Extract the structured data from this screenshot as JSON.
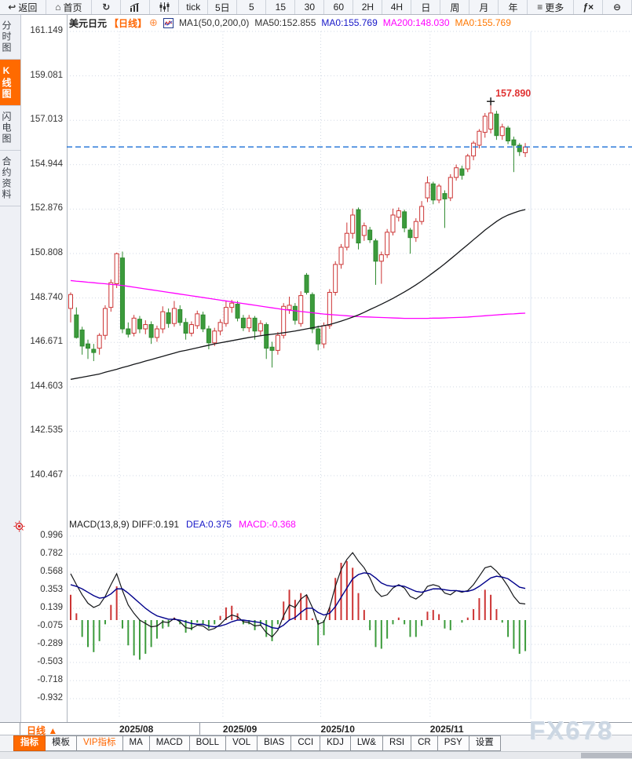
{
  "toolbar": {
    "items": [
      {
        "name": "back",
        "label": "返回",
        "icon": "back-arrow",
        "wide": true
      },
      {
        "name": "home",
        "label": "首页",
        "icon": "home",
        "wide": true
      },
      {
        "name": "refresh",
        "label": "",
        "icon": "refresh"
      },
      {
        "name": "chart-type-bar",
        "label": "",
        "icon": "bar-chart"
      },
      {
        "name": "chart-type-candle",
        "label": "",
        "icon": "candle-sliders"
      },
      {
        "name": "timeframe-tick",
        "label": "tick"
      },
      {
        "name": "timeframe-5d",
        "label": "5日"
      },
      {
        "name": "timeframe-5",
        "label": "5"
      },
      {
        "name": "timeframe-15",
        "label": "15"
      },
      {
        "name": "timeframe-30",
        "label": "30"
      },
      {
        "name": "timeframe-60",
        "label": "60"
      },
      {
        "name": "timeframe-2h",
        "label": "2H"
      },
      {
        "name": "timeframe-4h",
        "label": "4H"
      },
      {
        "name": "timeframe-day",
        "label": "日"
      },
      {
        "name": "timeframe-week",
        "label": "周"
      },
      {
        "name": "timeframe-month",
        "label": "月"
      },
      {
        "name": "timeframe-year",
        "label": "年"
      },
      {
        "name": "more",
        "label": "更多",
        "icon": "menu",
        "wide": true
      },
      {
        "name": "fx",
        "label": "",
        "icon": "fx"
      },
      {
        "name": "zoom-out",
        "label": "",
        "icon": "zoom-out"
      }
    ]
  },
  "sidebar": {
    "tabs": [
      {
        "name": "time-share-chart",
        "label": "分时图",
        "active": false
      },
      {
        "name": "kline-chart",
        "label": "K线图",
        "active": true
      },
      {
        "name": "lightning-chart",
        "label": "闪电图",
        "active": false
      },
      {
        "name": "contract-info",
        "label": "合约资料",
        "active": false
      }
    ]
  },
  "chart_header": {
    "symbol": "美元日元",
    "period": "【日线】",
    "plus_icon": "⊕",
    "ma_settings": "MA1(50,0,200,0)",
    "ma50": "MA50:152.855",
    "ma0_blue": "MA0:155.769",
    "ma200": "MA200:148.030",
    "ma0_orange": "MA0:155.769"
  },
  "price_axis": [
    "161.149",
    "159.081",
    "157.013",
    "154.944",
    "152.876",
    "150.808",
    "148.740",
    "146.671",
    "144.603",
    "142.535",
    "140.467"
  ],
  "high_label": "157.890",
  "macd_header": {
    "title_diff": "MACD(13,8,9) DIFF:0.191",
    "dea": "DEA:0.375",
    "macd": "MACD:-0.368"
  },
  "macd_axis": [
    "0.996",
    "0.782",
    "0.568",
    "0.353",
    "0.139",
    "-0.075",
    "-0.289",
    "-0.503",
    "-0.718",
    "-0.932"
  ],
  "x_axis": {
    "period_label": "日线 ▲",
    "dates": [
      "2025/08",
      "2025/09",
      "2025/10",
      "2025/11"
    ]
  },
  "bottom_tabs": [
    {
      "name": "indicator",
      "label": "指标",
      "style": "active"
    },
    {
      "name": "template",
      "label": "模板",
      "style": ""
    },
    {
      "name": "vip-indicator",
      "label": "VIP指标",
      "style": "vip"
    },
    {
      "name": "ma",
      "label": "MA",
      "style": ""
    },
    {
      "name": "macd",
      "label": "MACD",
      "style": ""
    },
    {
      "name": "boll",
      "label": "BOLL",
      "style": ""
    },
    {
      "name": "vol",
      "label": "VOL",
      "style": ""
    },
    {
      "name": "bias",
      "label": "BIAS",
      "style": ""
    },
    {
      "name": "cci",
      "label": "CCI",
      "style": ""
    },
    {
      "name": "kdj",
      "label": "KDJ",
      "style": ""
    },
    {
      "name": "lw",
      "label": "LW&",
      "style": ""
    },
    {
      "name": "rsi",
      "label": "RSI",
      "style": ""
    },
    {
      "name": "cr",
      "label": "CR",
      "style": ""
    },
    {
      "name": "psy",
      "label": "PSY",
      "style": ""
    },
    {
      "name": "settings",
      "label": "设置",
      "style": ""
    }
  ],
  "watermark": "FX678",
  "colors": {
    "up": "#cc3434",
    "down": "#3c9b3c",
    "down_stroke": "#2f8a2f",
    "ma50": "#15171a",
    "ma200": "#ff00ff",
    "diff_line": "#15171a",
    "dea_line": "#00008b",
    "price_line": "#1a6fd6",
    "grid": "#d2d9e4",
    "accent_orange": "#ff6600",
    "red_label": "#e03333"
  },
  "chart_data": {
    "type": "candlestick",
    "title": "美元日元 日线 (USD/JPY Daily) with MA50/MA200 and MACD(13,8,9)",
    "ylabel": "Price",
    "y_ticks": [
      161.149,
      159.081,
      157.013,
      154.944,
      152.876,
      150.808,
      148.74,
      146.671,
      144.603,
      142.535,
      140.467
    ],
    "ylim": [
      140.467,
      161.149
    ],
    "last_price": 155.769,
    "marked_high": {
      "index": 73,
      "price": 157.89,
      "label": "157.890"
    },
    "months": [
      {
        "label": "2025/08",
        "start_index": 9
      },
      {
        "label": "2025/09",
        "start_index": 27
      },
      {
        "label": "2025/10",
        "start_index": 44
      },
      {
        "label": "2025/11",
        "start_index": 63
      }
    ],
    "candles": [
      [
        148.25,
        149.0,
        147.6,
        148.9
      ],
      [
        147.95,
        148.3,
        146.85,
        146.9
      ],
      [
        147.25,
        147.4,
        146.1,
        146.5
      ],
      [
        146.6,
        146.8,
        145.9,
        146.4
      ],
      [
        146.35,
        146.6,
        145.8,
        146.2
      ],
      [
        146.4,
        147.1,
        146.1,
        147.0
      ],
      [
        147.0,
        148.4,
        146.8,
        148.25
      ],
      [
        148.3,
        149.6,
        148.1,
        149.45
      ],
      [
        149.4,
        150.85,
        149.2,
        150.8
      ],
      [
        150.6,
        150.9,
        147.1,
        147.3
      ],
      [
        147.3,
        147.6,
        146.9,
        147.05
      ],
      [
        147.1,
        147.95,
        146.95,
        147.8
      ],
      [
        147.75,
        147.9,
        147.1,
        147.3
      ],
      [
        147.3,
        147.7,
        147.05,
        147.5
      ],
      [
        147.5,
        147.65,
        146.6,
        146.9
      ],
      [
        146.9,
        147.45,
        146.7,
        147.3
      ],
      [
        147.3,
        148.35,
        147.1,
        148.1
      ],
      [
        148.05,
        148.25,
        147.35,
        147.55
      ],
      [
        147.55,
        148.6,
        147.4,
        148.25
      ],
      [
        148.2,
        148.4,
        147.45,
        147.6
      ],
      [
        147.6,
        147.8,
        146.8,
        147.1
      ],
      [
        147.1,
        147.65,
        146.95,
        147.5
      ],
      [
        147.45,
        148.15,
        147.3,
        148.0
      ],
      [
        147.95,
        148.1,
        147.15,
        147.3
      ],
      [
        147.3,
        147.45,
        146.35,
        146.65
      ],
      [
        146.65,
        147.35,
        146.5,
        147.2
      ],
      [
        147.2,
        147.75,
        147.0,
        147.6
      ],
      [
        147.55,
        148.6,
        147.4,
        148.3
      ],
      [
        148.3,
        148.65,
        148.05,
        148.5
      ],
      [
        148.45,
        148.6,
        147.65,
        147.8
      ],
      [
        147.8,
        147.95,
        147.2,
        147.35
      ],
      [
        147.35,
        147.95,
        147.15,
        147.8
      ],
      [
        147.8,
        147.9,
        146.8,
        147.2
      ],
      [
        147.2,
        147.7,
        147.0,
        147.55
      ],
      [
        147.5,
        147.6,
        145.9,
        146.4
      ],
      [
        146.45,
        146.7,
        145.5,
        146.3
      ],
      [
        146.3,
        147.15,
        146.1,
        147.0
      ],
      [
        147.0,
        148.5,
        146.85,
        148.35
      ],
      [
        148.2,
        148.8,
        148.0,
        148.4
      ],
      [
        148.35,
        148.5,
        147.5,
        147.7
      ],
      [
        147.55,
        149.05,
        147.4,
        148.85
      ],
      [
        149.8,
        149.9,
        148.9,
        149.0
      ],
      [
        148.9,
        149.0,
        147.1,
        147.3
      ],
      [
        147.3,
        147.45,
        146.3,
        146.6
      ],
      [
        146.6,
        147.6,
        146.4,
        147.45
      ],
      [
        147.45,
        149.15,
        147.3,
        149.0
      ],
      [
        149.0,
        150.45,
        148.85,
        150.3
      ],
      [
        150.3,
        151.25,
        150.1,
        151.1
      ],
      [
        151.1,
        152.25,
        150.95,
        151.75
      ],
      [
        151.75,
        152.9,
        151.5,
        152.6
      ],
      [
        152.85,
        152.95,
        151.0,
        151.3
      ],
      [
        151.65,
        152.25,
        151.4,
        152.1
      ],
      [
        151.9,
        152.05,
        151.3,
        151.45
      ],
      [
        151.4,
        151.5,
        149.35,
        150.45
      ],
      [
        150.45,
        150.9,
        149.4,
        150.75
      ],
      [
        150.75,
        151.95,
        150.6,
        151.8
      ],
      [
        151.8,
        152.9,
        151.65,
        152.6
      ],
      [
        152.5,
        152.95,
        152.3,
        152.8
      ],
      [
        152.75,
        152.85,
        151.8,
        152.0
      ],
      [
        151.9,
        152.0,
        150.8,
        151.55
      ],
      [
        151.55,
        152.45,
        151.35,
        152.3
      ],
      [
        152.3,
        153.25,
        152.15,
        153.0
      ],
      [
        153.4,
        154.4,
        153.2,
        154.1
      ],
      [
        154.05,
        154.15,
        153.1,
        153.3
      ],
      [
        153.3,
        154.05,
        153.15,
        153.95
      ],
      [
        153.6,
        153.75,
        152.0,
        153.35
      ],
      [
        153.4,
        154.5,
        153.25,
        154.35
      ],
      [
        154.35,
        154.95,
        154.2,
        154.8
      ],
      [
        154.75,
        154.9,
        154.25,
        154.45
      ],
      [
        154.75,
        155.45,
        154.6,
        155.35
      ],
      [
        155.35,
        156.05,
        155.15,
        155.95
      ],
      [
        155.85,
        156.6,
        155.7,
        156.5
      ],
      [
        156.45,
        157.35,
        156.2,
        157.2
      ],
      [
        156.6,
        157.89,
        156.4,
        157.35
      ],
      [
        157.3,
        157.45,
        156.1,
        156.3
      ],
      [
        156.3,
        156.85,
        156.1,
        156.7
      ],
      [
        156.65,
        156.75,
        155.9,
        156.05
      ],
      [
        156.1,
        156.25,
        154.6,
        155.85
      ],
      [
        155.85,
        155.95,
        155.35,
        155.55
      ],
      [
        155.5,
        155.95,
        155.3,
        155.77
      ]
    ],
    "ma50": [
      144.95,
      145.0,
      145.05,
      145.1,
      145.15,
      145.2,
      145.28,
      145.35,
      145.42,
      145.5,
      145.57,
      145.65,
      145.72,
      145.8,
      145.87,
      145.95,
      146.02,
      146.1,
      146.17,
      146.25,
      146.3,
      146.36,
      146.42,
      146.48,
      146.54,
      146.6,
      146.65,
      146.7,
      146.75,
      146.8,
      146.85,
      146.9,
      146.94,
      146.98,
      147.02,
      147.05,
      147.08,
      147.12,
      147.16,
      147.2,
      147.25,
      147.3,
      147.35,
      147.4,
      147.45,
      147.5,
      147.58,
      147.66,
      147.75,
      147.85,
      147.95,
      148.07,
      148.2,
      148.32,
      148.45,
      148.58,
      148.72,
      148.87,
      149.02,
      149.18,
      149.35,
      149.53,
      149.72,
      149.92,
      150.12,
      150.33,
      150.55,
      150.77,
      151.0,
      151.22,
      151.45,
      151.67,
      151.9,
      152.1,
      152.3,
      152.47,
      152.6,
      152.7,
      152.79,
      152.855
    ],
    "ma200": [
      149.55,
      149.52,
      149.5,
      149.47,
      149.45,
      149.42,
      149.4,
      149.37,
      149.35,
      149.32,
      149.28,
      149.24,
      149.2,
      149.16,
      149.12,
      149.08,
      149.04,
      149.0,
      148.96,
      148.92,
      148.88,
      148.84,
      148.8,
      148.76,
      148.72,
      148.68,
      148.64,
      148.6,
      148.56,
      148.52,
      148.48,
      148.44,
      148.4,
      148.36,
      148.32,
      148.28,
      148.24,
      148.2,
      148.17,
      148.14,
      148.11,
      148.08,
      148.05,
      148.02,
      147.99,
      147.97,
      147.95,
      147.93,
      147.91,
      147.89,
      147.87,
      147.86,
      147.85,
      147.84,
      147.83,
      147.82,
      147.81,
      147.8,
      147.79,
      147.79,
      147.79,
      147.79,
      147.79,
      147.8,
      147.8,
      147.81,
      147.82,
      147.83,
      147.84,
      147.85,
      147.87,
      147.89,
      147.91,
      147.93,
      147.95,
      147.97,
      147.99,
      148.0,
      148.02,
      148.03
    ],
    "macd": {
      "params": "13,8,9",
      "y_ticks": [
        0.996,
        0.782,
        0.568,
        0.353,
        0.139,
        -0.075,
        -0.289,
        -0.503,
        -0.718,
        -0.932
      ],
      "last": {
        "diff": 0.191,
        "dea": 0.375,
        "hist": -0.368
      },
      "diff": [
        0.55,
        0.42,
        0.3,
        0.2,
        0.15,
        0.18,
        0.28,
        0.42,
        0.55,
        0.35,
        0.18,
        0.08,
        0.0,
        -0.04,
        -0.08,
        -0.07,
        -0.02,
        -0.03,
        0.02,
        -0.02,
        -0.09,
        -0.1,
        -0.06,
        -0.07,
        -0.12,
        -0.1,
        -0.05,
        0.02,
        0.06,
        0.04,
        -0.02,
        -0.03,
        -0.07,
        -0.06,
        -0.15,
        -0.2,
        -0.12,
        0.05,
        0.18,
        0.15,
        0.25,
        0.3,
        0.15,
        -0.05,
        -0.02,
        0.15,
        0.4,
        0.6,
        0.72,
        0.8,
        0.7,
        0.62,
        0.5,
        0.35,
        0.28,
        0.3,
        0.38,
        0.42,
        0.38,
        0.28,
        0.25,
        0.3,
        0.4,
        0.42,
        0.4,
        0.32,
        0.3,
        0.35,
        0.33,
        0.35,
        0.42,
        0.52,
        0.62,
        0.64,
        0.58,
        0.5,
        0.4,
        0.28,
        0.2,
        0.191
      ],
      "dea": [
        0.42,
        0.4,
        0.37,
        0.33,
        0.29,
        0.26,
        0.27,
        0.31,
        0.37,
        0.37,
        0.32,
        0.26,
        0.2,
        0.14,
        0.09,
        0.05,
        0.03,
        0.01,
        0.01,
        0.0,
        -0.02,
        -0.04,
        -0.05,
        -0.05,
        -0.07,
        -0.08,
        -0.07,
        -0.05,
        -0.02,
        0.0,
        0.0,
        -0.01,
        -0.02,
        -0.03,
        -0.06,
        -0.09,
        -0.1,
        -0.06,
        0.0,
        0.03,
        0.09,
        0.14,
        0.14,
        0.09,
        0.06,
        0.08,
        0.16,
        0.27,
        0.38,
        0.49,
        0.54,
        0.56,
        0.55,
        0.5,
        0.44,
        0.41,
        0.4,
        0.41,
        0.4,
        0.37,
        0.34,
        0.33,
        0.35,
        0.37,
        0.37,
        0.36,
        0.35,
        0.35,
        0.34,
        0.34,
        0.36,
        0.4,
        0.45,
        0.5,
        0.52,
        0.51,
        0.49,
        0.44,
        0.39,
        0.375
      ],
      "hist": [
        0.3,
        0.08,
        -0.2,
        -0.32,
        -0.38,
        -0.25,
        -0.05,
        0.18,
        0.4,
        -0.1,
        -0.3,
        -0.42,
        -0.47,
        -0.4,
        -0.32,
        -0.22,
        -0.1,
        -0.08,
        0.03,
        -0.05,
        -0.15,
        -0.12,
        -0.03,
        -0.05,
        -0.1,
        -0.05,
        0.05,
        0.15,
        0.17,
        0.08,
        -0.05,
        -0.05,
        -0.12,
        -0.07,
        -0.2,
        -0.25,
        -0.05,
        0.22,
        0.36,
        0.24,
        0.32,
        0.3,
        0.02,
        -0.3,
        -0.18,
        0.15,
        0.5,
        0.68,
        0.7,
        0.62,
        0.32,
        0.12,
        -0.12,
        -0.32,
        -0.34,
        -0.22,
        -0.05,
        0.03,
        -0.05,
        -0.2,
        -0.2,
        -0.07,
        0.1,
        0.12,
        0.07,
        -0.1,
        -0.12,
        0.0,
        -0.03,
        0.03,
        0.13,
        0.26,
        0.36,
        0.3,
        0.13,
        -0.03,
        -0.2,
        -0.34,
        -0.4,
        -0.368
      ]
    }
  }
}
